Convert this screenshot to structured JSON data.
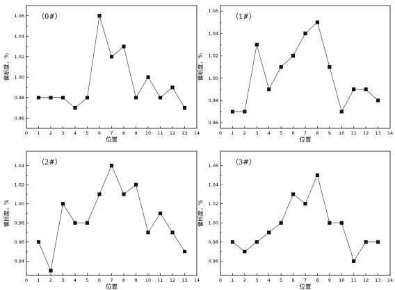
{
  "chart_data": [
    {
      "type": "line",
      "title": "（0#）",
      "xlabel": "位置",
      "ylabel": "偏析度，%",
      "xlim": [
        0,
        14
      ],
      "ylim": [
        0.95,
        1.07
      ],
      "xticks": [
        0,
        1,
        2,
        3,
        4,
        5,
        6,
        7,
        8,
        9,
        10,
        11,
        12,
        13,
        14
      ],
      "yticks": [
        0.96,
        0.98,
        1.0,
        1.02,
        1.04,
        1.06
      ],
      "yticklabels": [
        "0.96",
        "0.98",
        "1.00",
        "1.02",
        "1.04",
        "1.06"
      ],
      "grid": false,
      "series": [
        {
          "x": [
            1,
            2,
            3,
            4,
            5,
            6,
            7,
            8,
            9,
            10,
            11,
            12,
            13
          ],
          "y": [
            0.98,
            0.98,
            0.98,
            0.97,
            0.98,
            1.06,
            1.02,
            1.03,
            0.98,
            1.0,
            0.98,
            0.99,
            0.97
          ]
        }
      ]
    },
    {
      "type": "line",
      "title": "（1#）",
      "xlabel": "位置",
      "ylabel": "偏析度，%",
      "xlim": [
        0,
        14
      ],
      "ylim": [
        0.955,
        1.065
      ],
      "xticks": [
        0,
        1,
        2,
        3,
        4,
        5,
        6,
        7,
        8,
        9,
        10,
        11,
        12,
        13,
        14
      ],
      "yticks": [
        0.96,
        0.98,
        1.0,
        1.02,
        1.04,
        1.06
      ],
      "yticklabels": [
        "0.96",
        "0.98",
        "1.00",
        "1.02",
        "1.04",
        "1.06"
      ],
      "grid": false,
      "series": [
        {
          "x": [
            1,
            2,
            3,
            4,
            5,
            6,
            7,
            8,
            9,
            10,
            11,
            12,
            13
          ],
          "y": [
            0.97,
            0.97,
            1.03,
            0.99,
            1.01,
            1.02,
            1.04,
            1.05,
            1.01,
            0.97,
            0.99,
            0.99,
            0.98
          ]
        }
      ]
    },
    {
      "type": "line",
      "title": "（2#）",
      "xlabel": "位置",
      "ylabel": "偏析度，%",
      "xlim": [
        0,
        14
      ],
      "ylim": [
        0.925,
        1.055
      ],
      "xticks": [
        0,
        1,
        2,
        3,
        4,
        5,
        6,
        7,
        8,
        9,
        10,
        11,
        12,
        13,
        14
      ],
      "yticks": [
        0.94,
        0.96,
        0.98,
        1.0,
        1.02,
        1.04
      ],
      "yticklabels": [
        "0.94",
        "0.96",
        "0.98",
        "1.00",
        "1.02",
        "1.04"
      ],
      "grid": false,
      "series": [
        {
          "x": [
            1,
            2,
            3,
            4,
            5,
            6,
            7,
            8,
            9,
            10,
            11,
            12,
            13
          ],
          "y": [
            0.96,
            0.93,
            1.0,
            0.98,
            0.98,
            1.01,
            1.04,
            1.01,
            1.02,
            0.97,
            0.99,
            0.97,
            0.95
          ]
        }
      ]
    },
    {
      "type": "line",
      "title": "（3#）",
      "xlabel": "位置",
      "ylabel": "偏析度，%",
      "xlim": [
        0,
        14
      ],
      "ylim": [
        0.945,
        1.075
      ],
      "xticks": [
        0,
        1,
        2,
        3,
        4,
        5,
        6,
        7,
        8,
        9,
        10,
        11,
        12,
        13,
        14
      ],
      "yticks": [
        0.96,
        0.98,
        1.0,
        1.02,
        1.04,
        1.06
      ],
      "yticklabels": [
        "0.96",
        "0.98",
        "1.00",
        "1.02",
        "1.04",
        "1.06"
      ],
      "grid": false,
      "series": [
        {
          "x": [
            1,
            2,
            3,
            4,
            5,
            6,
            7,
            8,
            9,
            10,
            11,
            12,
            13
          ],
          "y": [
            0.98,
            0.97,
            0.98,
            0.99,
            1.0,
            1.03,
            1.02,
            1.05,
            1.0,
            1.0,
            0.96,
            0.98,
            0.98
          ]
        }
      ]
    }
  ]
}
